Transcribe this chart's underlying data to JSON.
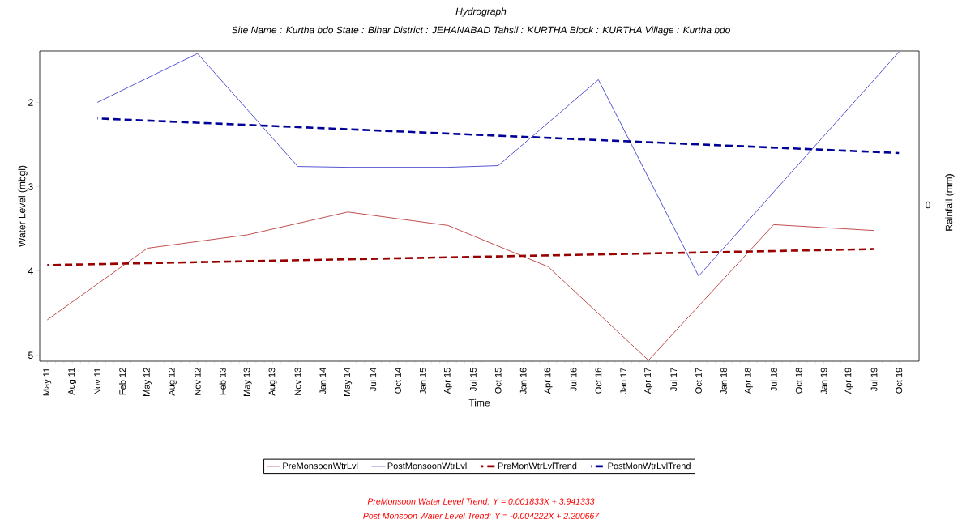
{
  "chart_data": {
    "type": "line",
    "title": "Hydrograph",
    "subtitle": "Site Name : Kurtha bdo  State : Bihar District : JEHANABAD  Tahsil : KURTHA  Block : KURTHA Village : Kurtha bdo",
    "xlabel": "Time",
    "ylabel": "Water Level (mbgl)",
    "ylim": [
      5.07,
      1.39
    ],
    "yticks": [
      2,
      3,
      4,
      5
    ],
    "categories": [
      "May 11",
      "Aug 11",
      "Nov 11",
      "Feb 12",
      "May 12",
      "Aug 12",
      "Nov 12",
      "Feb 13",
      "May 13",
      "Aug 13",
      "Nov 13",
      "Jan 14",
      "May 14",
      "Jul 14",
      "Oct 14",
      "Jan 15",
      "Apr 15",
      "Jul 15",
      "Oct 15",
      "Jan 16",
      "Apr 16",
      "Jul 16",
      "Oct 16",
      "Jan 17",
      "Apr 17",
      "Jul 17",
      "Oct 17",
      "Jan 18",
      "Apr 18",
      "Jul 18",
      "Oct 18",
      "Jan 19",
      "Apr 19",
      "Jul 19",
      "Oct 19"
    ],
    "series": [
      {
        "name": "PreMonsoonWtrLvl",
        "color": "#b22222",
        "line_style": "solid",
        "values": [
          4.58,
          null,
          null,
          null,
          3.73,
          null,
          null,
          null,
          3.57,
          null,
          null,
          null,
          3.3,
          null,
          null,
          null,
          3.46,
          null,
          null,
          null,
          3.95,
          null,
          null,
          null,
          5.06,
          null,
          null,
          null,
          null,
          3.45,
          null,
          null,
          null,
          3.52,
          null
        ]
      },
      {
        "name": "PostMonsoonWtrLvl",
        "color": "#2b2bc8",
        "line_style": "solid",
        "values": [
          null,
          null,
          2.0,
          null,
          null,
          null,
          1.42,
          null,
          null,
          null,
          2.76,
          null,
          2.77,
          null,
          null,
          null,
          2.77,
          null,
          2.75,
          null,
          null,
          null,
          1.73,
          null,
          null,
          null,
          4.06,
          null,
          null,
          null,
          null,
          null,
          null,
          null,
          1.4
        ]
      },
      {
        "name": "PreMonWtrLvlTrend",
        "color": "#990000",
        "line_style": "dashed",
        "values": [
          3.93,
          null,
          null,
          null,
          null,
          null,
          null,
          null,
          null,
          null,
          null,
          null,
          null,
          null,
          null,
          null,
          null,
          null,
          null,
          null,
          null,
          null,
          null,
          null,
          null,
          null,
          null,
          null,
          null,
          null,
          null,
          null,
          null,
          3.74,
          null
        ]
      },
      {
        "name": "PostMonWtrLvlTrend",
        "color": "#000099",
        "line_style": "dashed",
        "values": [
          null,
          null,
          2.19,
          null,
          null,
          null,
          null,
          null,
          null,
          null,
          null,
          null,
          null,
          null,
          null,
          null,
          null,
          null,
          null,
          null,
          null,
          null,
          null,
          null,
          null,
          null,
          null,
          null,
          null,
          null,
          null,
          null,
          null,
          null,
          2.6
        ]
      }
    ],
    "legend": "bottom",
    "grid": false,
    "marker": "none",
    "annotations": [
      "PreMonsoon Water Level Trend: Y = 0.001833X + 3.941333",
      "Post Monsoon Water Level Trend: Y = -0.004222X + 2.200667",
      "0",
      "Rainfall (mm)"
    ]
  }
}
